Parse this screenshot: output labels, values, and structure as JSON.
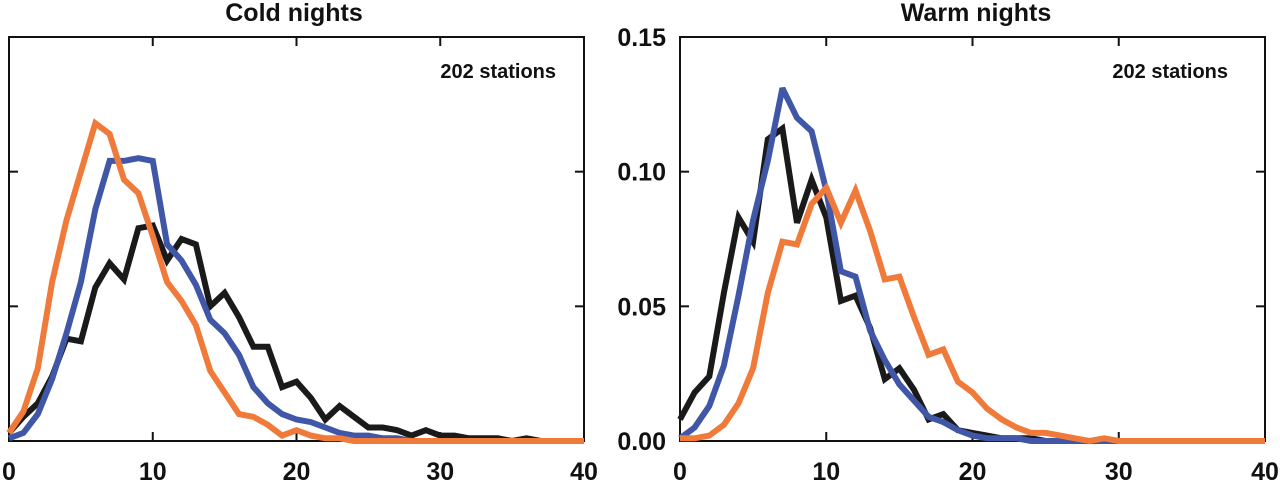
{
  "chart_data": [
    {
      "type": "line",
      "title": "Cold nights",
      "annotation": "202 stations",
      "xlim": [
        0,
        40
      ],
      "ylim": [
        0,
        0.15
      ],
      "xticks": [
        0,
        10,
        20,
        30,
        40
      ],
      "xtick_labels": [
        "0",
        "10",
        "20",
        "30",
        "40"
      ],
      "yticks": [
        0,
        0.05,
        0.1,
        0.15
      ],
      "ytick_labels": [],
      "grid": false,
      "series": [
        {
          "color": "#1a1a1a",
          "x": [
            0,
            1,
            2,
            3,
            4,
            5,
            6,
            7,
            8,
            9,
            10,
            11,
            12,
            13,
            14,
            15,
            16,
            17,
            18,
            19,
            20,
            21,
            22,
            23,
            24,
            25,
            26,
            27,
            28,
            29,
            30,
            31,
            32,
            33,
            34,
            35,
            36,
            37,
            38,
            39,
            40
          ],
          "y": [
            0.003,
            0.009,
            0.014,
            0.024,
            0.038,
            0.037,
            0.057,
            0.066,
            0.06,
            0.079,
            0.08,
            0.067,
            0.075,
            0.073,
            0.05,
            0.055,
            0.046,
            0.035,
            0.035,
            0.02,
            0.022,
            0.016,
            0.008,
            0.013,
            0.009,
            0.005,
            0.005,
            0.004,
            0.002,
            0.004,
            0.002,
            0.002,
            0.001,
            0.001,
            0.001,
            0.0,
            0.001,
            0.0,
            0.0,
            0.0,
            0.0
          ]
        },
        {
          "color": "#4057a8",
          "x": [
            0,
            1,
            2,
            3,
            4,
            5,
            6,
            7,
            8,
            9,
            10,
            11,
            12,
            13,
            14,
            15,
            16,
            17,
            18,
            19,
            20,
            21,
            22,
            23,
            24,
            25,
            26,
            27,
            28,
            29,
            30,
            31,
            32,
            33,
            34,
            35,
            36,
            37,
            38,
            39,
            40
          ],
          "y": [
            0.001,
            0.003,
            0.01,
            0.023,
            0.04,
            0.059,
            0.086,
            0.104,
            0.104,
            0.105,
            0.104,
            0.073,
            0.067,
            0.058,
            0.045,
            0.04,
            0.032,
            0.02,
            0.014,
            0.01,
            0.008,
            0.007,
            0.005,
            0.003,
            0.002,
            0.002,
            0.001,
            0.001,
            0.0,
            0.0,
            0.0,
            0.0,
            0.0,
            0.0,
            0.0,
            0.0,
            0.0,
            0.0,
            0.0,
            0.0,
            0.0
          ]
        },
        {
          "color": "#f07a3a",
          "x": [
            0,
            1,
            2,
            3,
            4,
            5,
            6,
            7,
            8,
            9,
            10,
            11,
            12,
            13,
            14,
            15,
            16,
            17,
            18,
            19,
            20,
            21,
            22,
            23,
            24,
            25,
            26,
            27,
            28,
            29,
            30,
            31,
            32,
            33,
            34,
            35,
            36,
            37,
            38,
            39,
            40
          ],
          "y": [
            0.003,
            0.011,
            0.027,
            0.059,
            0.082,
            0.1,
            0.118,
            0.114,
            0.097,
            0.092,
            0.076,
            0.059,
            0.052,
            0.043,
            0.026,
            0.018,
            0.01,
            0.009,
            0.006,
            0.002,
            0.004,
            0.002,
            0.001,
            0.001,
            0.0,
            0.0,
            0.0,
            0.0,
            0.0,
            0.0,
            0.0,
            0.0,
            0.0,
            0.0,
            0.0,
            0.0,
            0.0,
            0.0,
            0.0,
            0.0,
            0.0
          ]
        }
      ]
    },
    {
      "type": "line",
      "title": "Warm nights",
      "annotation": "202 stations",
      "xlim": [
        0,
        40
      ],
      "ylim": [
        0,
        0.15
      ],
      "xticks": [
        0,
        10,
        20,
        30,
        40
      ],
      "xtick_labels": [
        "0",
        "10",
        "20",
        "30",
        "40"
      ],
      "yticks": [
        0,
        0.05,
        0.1,
        0.15
      ],
      "ytick_labels": [
        "0.00",
        "0.05",
        "0.10",
        "0.15"
      ],
      "grid": false,
      "series": [
        {
          "color": "#1a1a1a",
          "x": [
            0,
            1,
            2,
            3,
            4,
            5,
            6,
            7,
            8,
            9,
            10,
            11,
            12,
            13,
            14,
            15,
            16,
            17,
            18,
            19,
            20,
            21,
            22,
            23,
            24,
            25,
            26,
            27,
            28,
            29,
            30,
            31,
            32,
            33,
            34,
            35,
            36,
            37,
            38,
            39,
            40
          ],
          "y": [
            0.008,
            0.018,
            0.024,
            0.055,
            0.083,
            0.074,
            0.112,
            0.116,
            0.081,
            0.097,
            0.083,
            0.052,
            0.054,
            0.042,
            0.023,
            0.027,
            0.019,
            0.008,
            0.01,
            0.004,
            0.003,
            0.002,
            0.001,
            0.001,
            0.001,
            0.0,
            0.0,
            0.0,
            0.0,
            0.0,
            0.0,
            0.0,
            0.0,
            0.0,
            0.0,
            0.0,
            0.0,
            0.0,
            0.0,
            0.0,
            0.0
          ]
        },
        {
          "color": "#4057a8",
          "x": [
            0,
            1,
            2,
            3,
            4,
            5,
            6,
            7,
            8,
            9,
            10,
            11,
            12,
            13,
            14,
            15,
            16,
            17,
            18,
            19,
            20,
            21,
            22,
            23,
            24,
            25,
            26,
            27,
            28,
            29,
            30,
            31,
            32,
            33,
            34,
            35,
            36,
            37,
            38,
            39,
            40
          ],
          "y": [
            0.001,
            0.005,
            0.013,
            0.028,
            0.054,
            0.082,
            0.104,
            0.131,
            0.12,
            0.115,
            0.093,
            0.063,
            0.061,
            0.041,
            0.03,
            0.021,
            0.015,
            0.009,
            0.007,
            0.004,
            0.002,
            0.001,
            0.001,
            0.001,
            0.0,
            0.0,
            0.0,
            0.0,
            0.0,
            0.0,
            0.0,
            0.0,
            0.0,
            0.0,
            0.0,
            0.0,
            0.0,
            0.0,
            0.0,
            0.0,
            0.0
          ]
        },
        {
          "color": "#f07a3a",
          "x": [
            0,
            1,
            2,
            3,
            4,
            5,
            6,
            7,
            8,
            9,
            10,
            11,
            12,
            13,
            14,
            15,
            16,
            17,
            18,
            19,
            20,
            21,
            22,
            23,
            24,
            25,
            26,
            27,
            28,
            29,
            30,
            31,
            32,
            33,
            34,
            35,
            36,
            37,
            38,
            39,
            40
          ],
          "y": [
            0.001,
            0.001,
            0.002,
            0.006,
            0.014,
            0.027,
            0.055,
            0.074,
            0.073,
            0.088,
            0.094,
            0.081,
            0.093,
            0.078,
            0.06,
            0.061,
            0.046,
            0.032,
            0.034,
            0.022,
            0.018,
            0.012,
            0.008,
            0.005,
            0.003,
            0.003,
            0.002,
            0.001,
            0.0,
            0.001,
            0.0,
            0.0,
            0.0,
            0.0,
            0.0,
            0.0,
            0.0,
            0.0,
            0.0,
            0.0,
            0.0
          ]
        }
      ]
    }
  ]
}
